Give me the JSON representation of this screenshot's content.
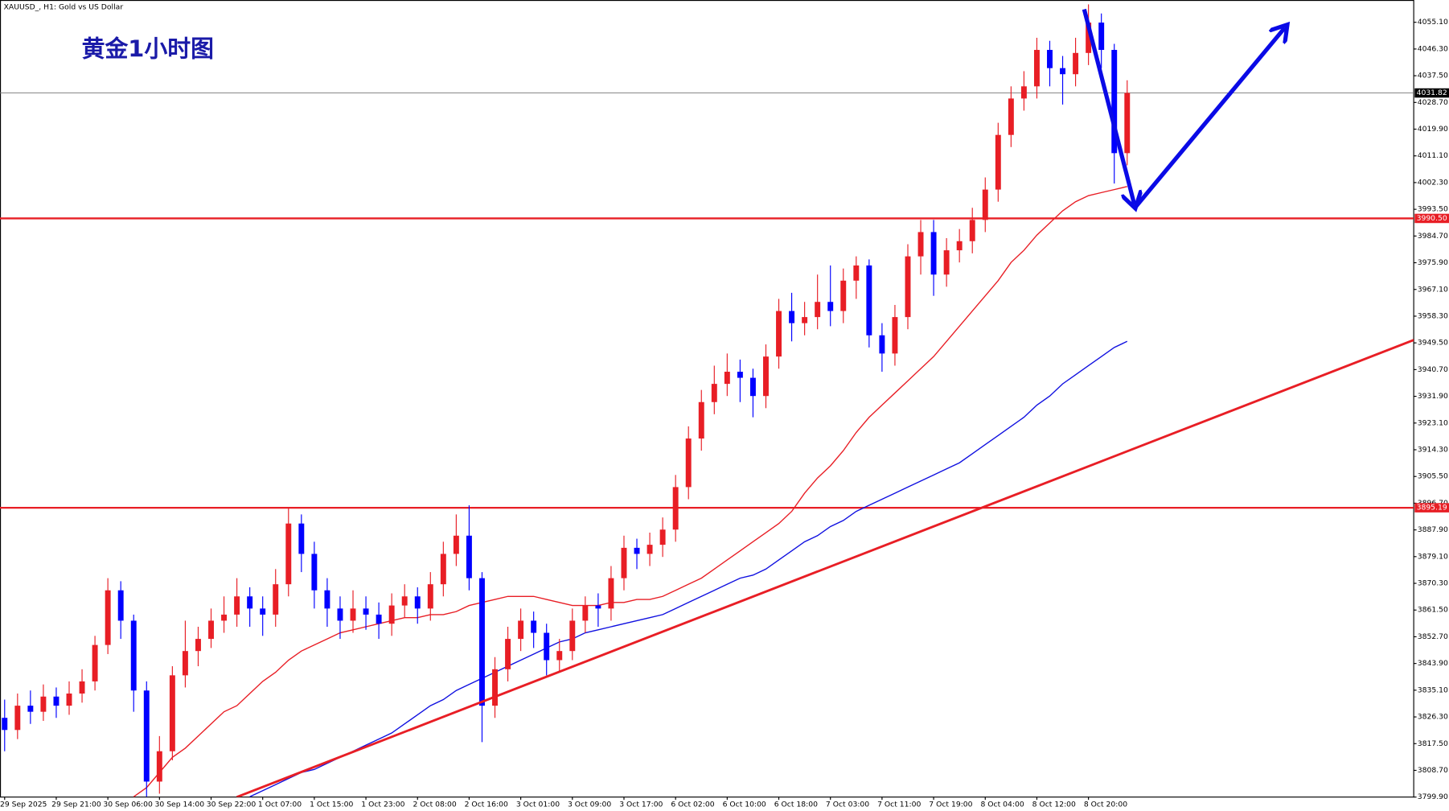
{
  "chart_data": {
    "type": "candlestick",
    "symbol_label": "XAUUSD_, H1:  Gold vs US Dollar",
    "title": "黄金1小时图",
    "up_color": "#e81e25",
    "down_color": "#0000ff",
    "categories": [
      "29 Sep 2025",
      null,
      null,
      null,
      "29 Sep 21:00",
      null,
      null,
      null,
      "30 Sep 06:00",
      null,
      null,
      null,
      "30 Sep 14:00",
      null,
      null,
      null,
      "30 Sep 22:00",
      null,
      null,
      null,
      "1 Oct 07:00",
      null,
      null,
      null,
      "1 Oct 15:00",
      null,
      null,
      null,
      "1 Oct 23:00",
      null,
      null,
      null,
      "2 Oct 08:00",
      null,
      null,
      null,
      "2 Oct 16:00",
      null,
      null,
      null,
      "3 Oct 01:00",
      null,
      null,
      null,
      "3 Oct 09:00",
      null,
      null,
      null,
      "3 Oct 17:00",
      null,
      null,
      null,
      "6 Oct 02:00",
      null,
      null,
      null,
      "6 Oct 10:00",
      null,
      null,
      null,
      "6 Oct 18:00",
      null,
      null,
      null,
      "7 Oct 03:00",
      null,
      null,
      null,
      "7 Oct 11:00",
      null,
      null,
      null,
      "7 Oct 19:00",
      null,
      null,
      null,
      "8 Oct 04:00",
      null,
      null,
      null,
      "8 Oct 12:00",
      null,
      null,
      null,
      "8 Oct 20:00",
      null,
      null,
      null
    ],
    "open": [
      3826,
      3822,
      3830,
      3828,
      3833,
      3830,
      3834,
      3838,
      3850,
      3868,
      3858,
      3835,
      3805,
      3815,
      3840,
      3848,
      3852,
      3858,
      3860,
      3866,
      3862,
      3860,
      3870,
      3890,
      3880,
      3868,
      3862,
      3858,
      3862,
      3860,
      3857,
      3863,
      3866,
      3862,
      3870,
      3880,
      3886,
      3872,
      3830,
      3842,
      3852,
      3858,
      3854,
      3845,
      3848,
      3858,
      3863,
      3862,
      3872,
      3882,
      3880,
      3883,
      3888,
      3902,
      3918,
      3930,
      3936,
      3940,
      3938,
      3932,
      3945,
      3960,
      3956,
      3958,
      3963,
      3960,
      3970,
      3975,
      3952,
      3946,
      3958,
      3978,
      3986,
      3972,
      3980,
      3983,
      3990,
      4000,
      4018,
      4030,
      4034,
      4046,
      4040,
      4038,
      4045,
      4055,
      4046,
      4012
    ],
    "high": [
      3832,
      3834,
      3835,
      3837,
      3836,
      3838,
      3842,
      3853,
      3872,
      3871,
      3860,
      3838,
      3820,
      3843,
      3858,
      3856,
      3862,
      3866,
      3872,
      3869,
      3866,
      3875,
      3895,
      3893,
      3884,
      3872,
      3866,
      3868,
      3866,
      3864,
      3867,
      3870,
      3869,
      3874,
      3884,
      3893,
      3896,
      3874,
      3846,
      3856,
      3862,
      3861,
      3857,
      3852,
      3862,
      3866,
      3867,
      3876,
      3886,
      3885,
      3887,
      3892,
      3906,
      3922,
      3934,
      3942,
      3946,
      3944,
      3941,
      3949,
      3964,
      3966,
      3963,
      3972,
      3975,
      3974,
      3978,
      3977,
      3956,
      3962,
      3982,
      3990,
      3990,
      3984,
      3987,
      3994,
      4004,
      4022,
      4034,
      4039,
      4050,
      4049,
      4044,
      4050,
      4061,
      4058,
      4048,
      4036
    ],
    "low": [
      3815,
      3819,
      3824,
      3825,
      3826,
      3827,
      3831,
      3835,
      3847,
      3852,
      3828,
      3800,
      3801,
      3812,
      3836,
      3843,
      3849,
      3854,
      3856,
      3856,
      3853,
      3856,
      3866,
      3874,
      3862,
      3856,
      3852,
      3854,
      3855,
      3852,
      3853,
      3859,
      3857,
      3858,
      3866,
      3876,
      3868,
      3818,
      3826,
      3838,
      3848,
      3849,
      3840,
      3841,
      3845,
      3854,
      3856,
      3858,
      3868,
      3875,
      3876,
      3879,
      3884,
      3898,
      3914,
      3926,
      3932,
      3930,
      3925,
      3928,
      3941,
      3950,
      3952,
      3954,
      3955,
      3956,
      3964,
      3948,
      3940,
      3942,
      3954,
      3972,
      3965,
      3968,
      3976,
      3979,
      3986,
      3996,
      4014,
      4026,
      4030,
      4034,
      4028,
      4034,
      4041,
      4040,
      4002,
      4008
    ],
    "close": [
      3822,
      3830,
      3828,
      3833,
      3830,
      3834,
      3838,
      3850,
      3868,
      3858,
      3835,
      3805,
      3815,
      3840,
      3848,
      3852,
      3858,
      3860,
      3866,
      3862,
      3860,
      3870,
      3890,
      3880,
      3868,
      3862,
      3858,
      3862,
      3860,
      3857,
      3863,
      3866,
      3862,
      3870,
      3880,
      3886,
      3872,
      3830,
      3842,
      3852,
      3858,
      3854,
      3845,
      3848,
      3858,
      3863,
      3862,
      3872,
      3882,
      3880,
      3883,
      3888,
      3902,
      3918,
      3930,
      3936,
      3940,
      3938,
      3932,
      3945,
      3960,
      3956,
      3958,
      3963,
      3960,
      3970,
      3975,
      3952,
      3946,
      3958,
      3978,
      3986,
      3972,
      3980,
      3983,
      3990,
      4000,
      4018,
      4030,
      4034,
      4046,
      4040,
      4038,
      4045,
      4055,
      4046,
      4012,
      4031.82
    ],
    "moving_averages": [
      {
        "color": "#e81e25",
        "values": [
          null,
          null,
          null,
          null,
          null,
          null,
          null,
          null,
          null,
          null,
          3800,
          3803,
          3808,
          3813,
          3816,
          3820,
          3824,
          3828,
          3830,
          3834,
          3838,
          3841,
          3845,
          3848,
          3850,
          3852,
          3854,
          3855,
          3856,
          3857,
          3858,
          3859,
          3859,
          3860,
          3860,
          3861,
          3863,
          3864,
          3865,
          3866,
          3866,
          3866,
          3865,
          3864,
          3863,
          3863,
          3863,
          3864,
          3864,
          3865,
          3865,
          3866,
          3868,
          3870,
          3872,
          3875,
          3878,
          3881,
          3884,
          3887,
          3890,
          3894,
          3900,
          3905,
          3909,
          3914,
          3920,
          3925,
          3929,
          3933,
          3937,
          3941,
          3945,
          3950,
          3955,
          3960,
          3965,
          3970,
          3976,
          3980,
          3985,
          3989,
          3993,
          3996,
          3998,
          3999,
          4000,
          4001
        ]
      },
      {
        "color": "#1010e0",
        "values": [
          null,
          null,
          null,
          null,
          null,
          null,
          null,
          null,
          null,
          null,
          null,
          null,
          null,
          null,
          null,
          null,
          null,
          null,
          null,
          3800,
          3802,
          3804,
          3806,
          3808,
          3809,
          3811,
          3813,
          3815,
          3817,
          3819,
          3821,
          3824,
          3827,
          3830,
          3832,
          3835,
          3837,
          3839,
          3841,
          3843,
          3845,
          3847,
          3849,
          3851,
          3852,
          3854,
          3855,
          3856,
          3857,
          3858,
          3859,
          3860,
          3862,
          3864,
          3866,
          3868,
          3870,
          3872,
          3873,
          3875,
          3878,
          3881,
          3884,
          3886,
          3889,
          3891,
          3894,
          3896,
          3898,
          3900,
          3902,
          3904,
          3906,
          3908,
          3910,
          3913,
          3916,
          3919,
          3922,
          3925,
          3929,
          3932,
          3936,
          3939,
          3942,
          3945,
          3948,
          3950
        ]
      }
    ],
    "levels": [
      {
        "value": 3990.5,
        "label": "3990.50",
        "color": "#e81e25"
      },
      {
        "value": 3895.19,
        "label": "3895.19",
        "color": "#e81e25"
      }
    ],
    "current_price": {
      "value": 4031.82,
      "label": "4031.82"
    },
    "ylim": [
      3799.9,
      4062.44
    ],
    "yticks": [
      {
        "value": 4055.1,
        "label": "4055.10"
      },
      {
        "value": 4046.3,
        "label": "4046.30"
      },
      {
        "value": 4037.5,
        "label": "4037.50"
      },
      {
        "value": 4028.7,
        "label": "4028.70"
      },
      {
        "value": 4019.9,
        "label": "4019.90"
      },
      {
        "value": 4011.1,
        "label": "4011.10"
      },
      {
        "value": 4002.3,
        "label": "4002.30"
      },
      {
        "value": 3993.5,
        "label": "3993.50"
      },
      {
        "value": 3984.7,
        "label": "3984.70"
      },
      {
        "value": 3975.9,
        "label": "3975.90"
      },
      {
        "value": 3967.1,
        "label": "3967.10"
      },
      {
        "value": 3958.3,
        "label": "3958.30"
      },
      {
        "value": 3949.5,
        "label": "3949.50"
      },
      {
        "value": 3940.7,
        "label": "3940.70"
      },
      {
        "value": 3931.9,
        "label": "3931.90"
      },
      {
        "value": 3923.1,
        "label": "3923.10"
      },
      {
        "value": 3914.3,
        "label": "3914.30"
      },
      {
        "value": 3905.5,
        "label": "3905.50"
      },
      {
        "value": 3896.7,
        "label": "3896.70"
      },
      {
        "value": 3887.9,
        "label": "3887.90"
      },
      {
        "value": 3879.1,
        "label": "3879.10"
      },
      {
        "value": 3870.3,
        "label": "3870.30"
      },
      {
        "value": 3861.5,
        "label": "3861.50"
      },
      {
        "value": 3852.7,
        "label": "3852.70"
      },
      {
        "value": 3843.9,
        "label": "3843.90"
      },
      {
        "value": 3835.1,
        "label": "3835.10"
      },
      {
        "value": 3826.3,
        "label": "3826.30"
      },
      {
        "value": 3817.5,
        "label": "3817.50"
      },
      {
        "value": 3808.7,
        "label": "3808.70"
      },
      {
        "value": 3799.9,
        "label": "3799.90"
      }
    ]
  }
}
